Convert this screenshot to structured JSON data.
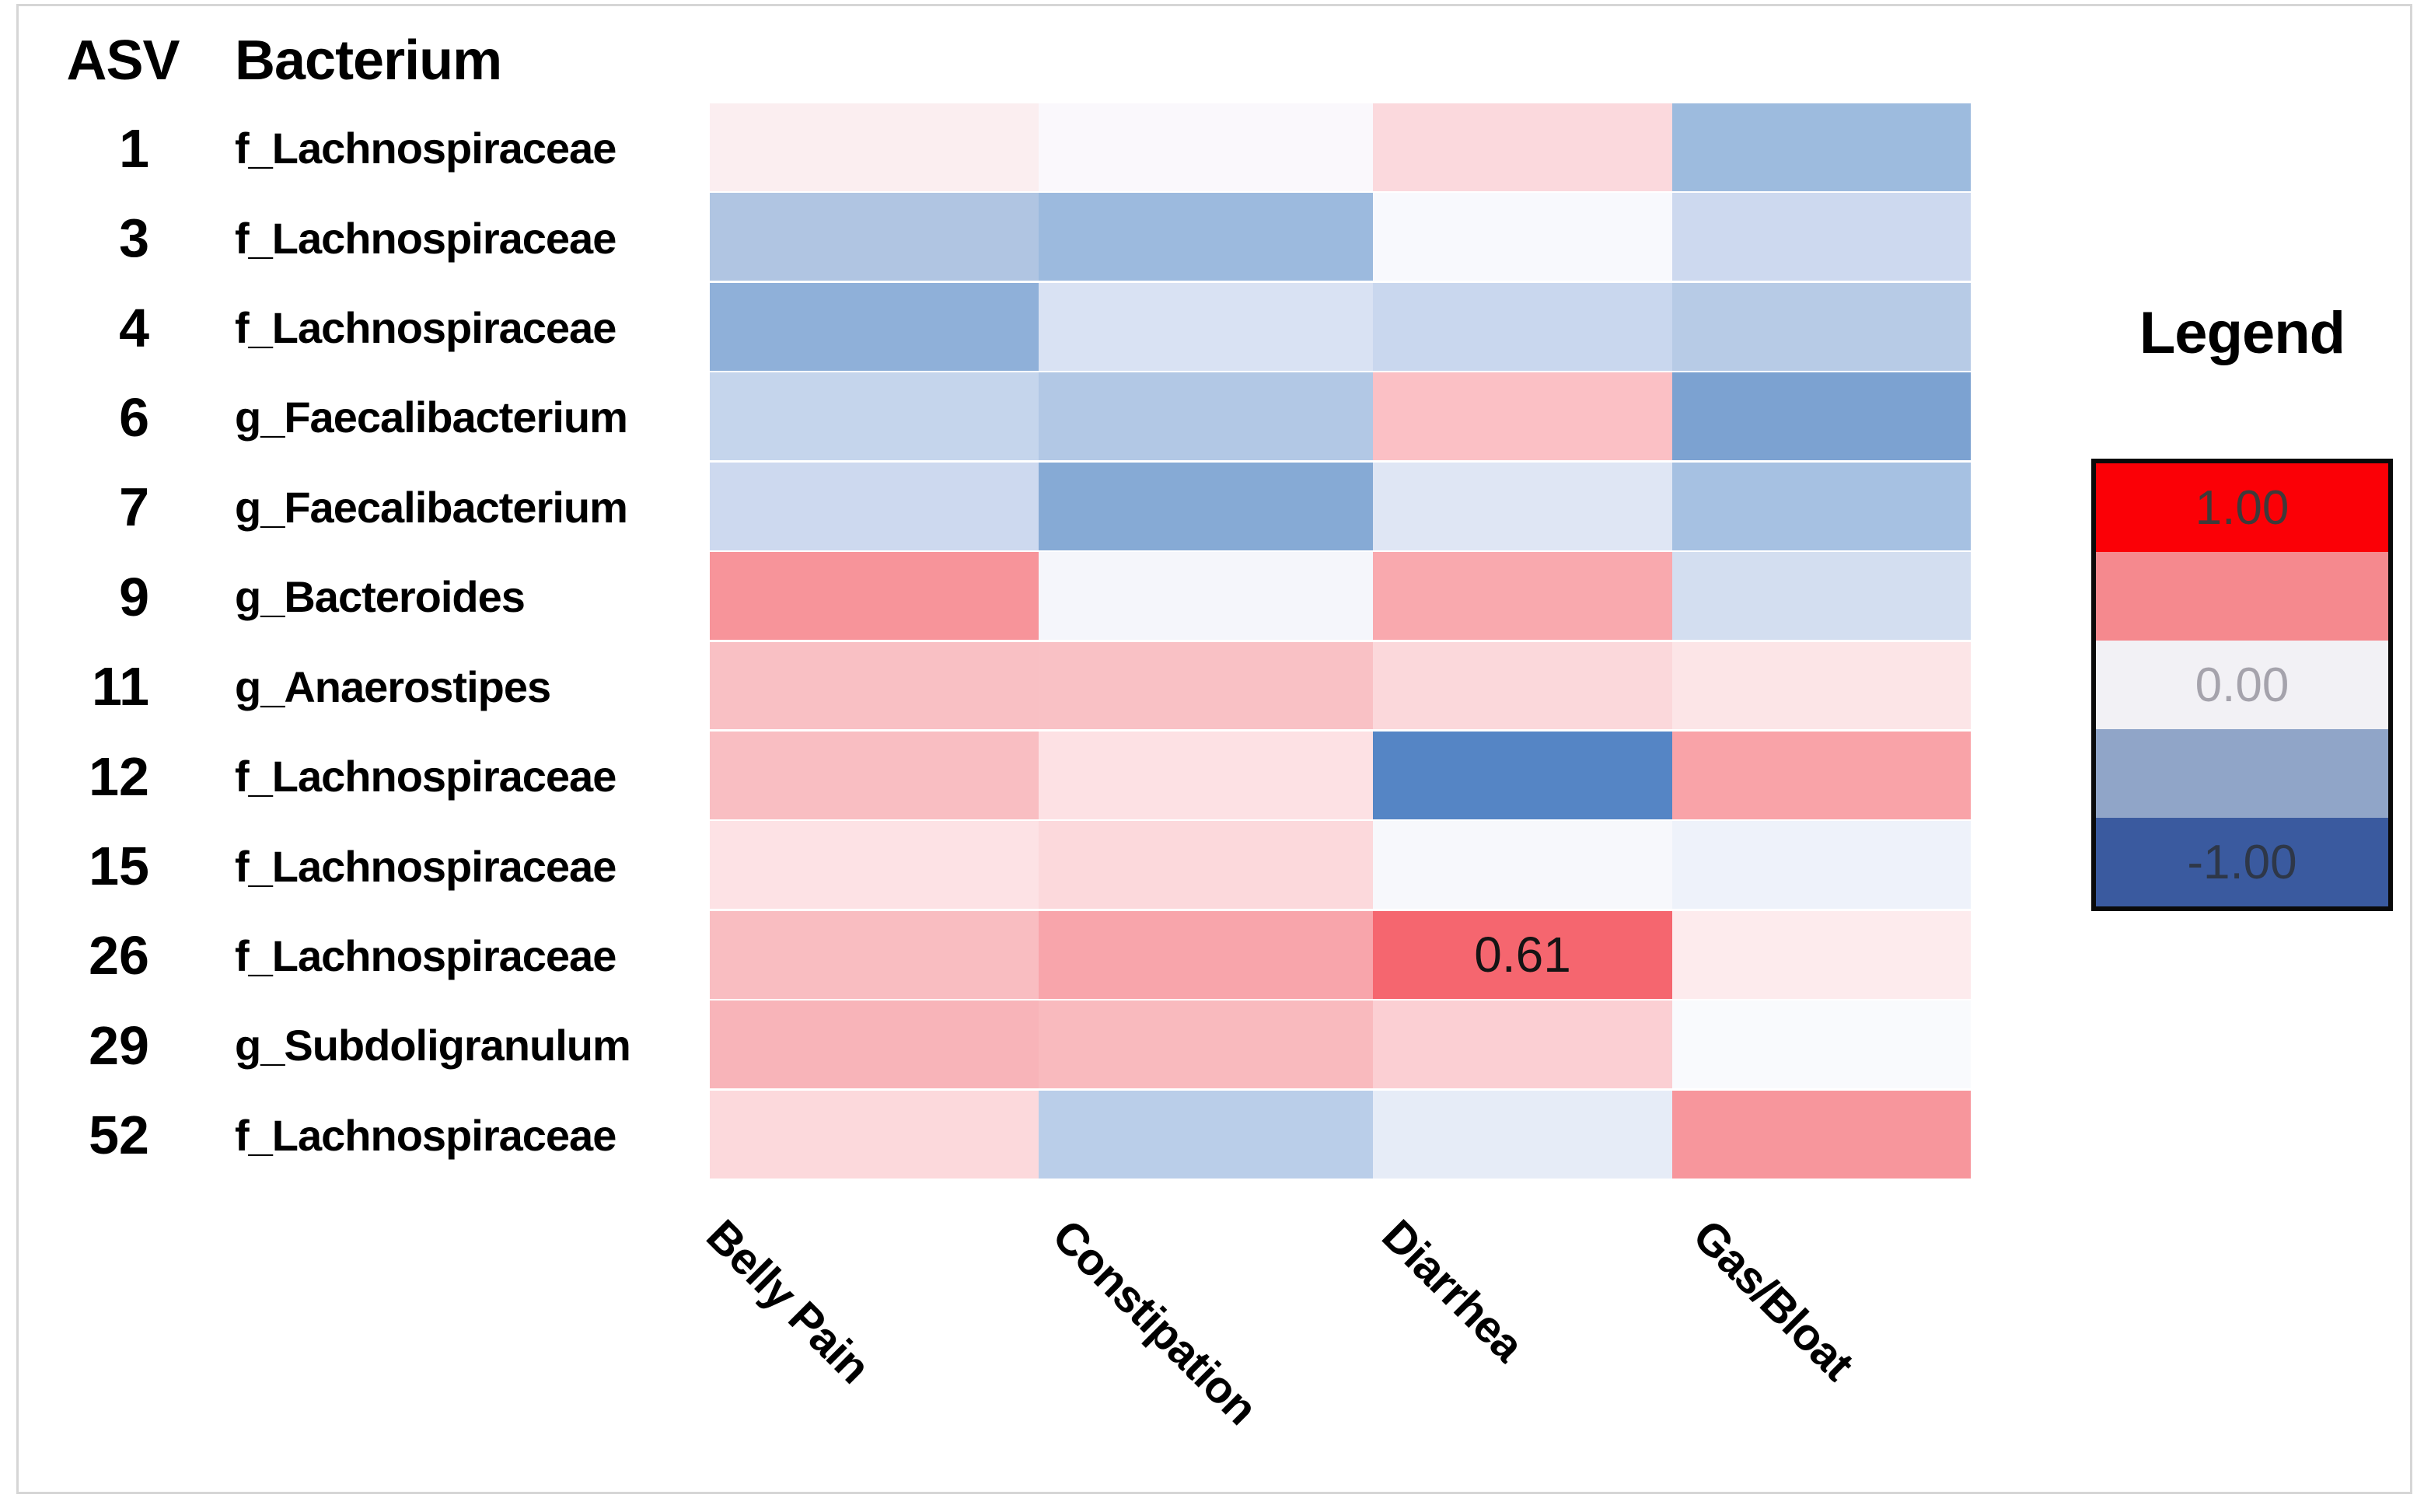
{
  "figure": {
    "asv_header": "ASV",
    "bacterium_header": "Bacterium"
  },
  "chart_data": {
    "type": "heatmap",
    "title": "",
    "columns": [
      "Belly Pain",
      "Constipation",
      "Diarrhea",
      "Gas/Bloat"
    ],
    "rows": [
      {
        "asv": "1",
        "bacterium": "f_Lachnospiraceae"
      },
      {
        "asv": "3",
        "bacterium": "f_Lachnospiraceae"
      },
      {
        "asv": "4",
        "bacterium": "f_Lachnospiraceae"
      },
      {
        "asv": "6",
        "bacterium": "g_Faecalibacterium"
      },
      {
        "asv": "7",
        "bacterium": "g_Faecalibacterium"
      },
      {
        "asv": "9",
        "bacterium": "g_Bacteroides"
      },
      {
        "asv": "11",
        "bacterium": "g_Anaerostipes"
      },
      {
        "asv": "12",
        "bacterium": "f_Lachnospiraceae"
      },
      {
        "asv": "15",
        "bacterium": "f_Lachnospiraceae"
      },
      {
        "asv": "26",
        "bacterium": "f_Lachnospiraceae"
      },
      {
        "asv": "29",
        "bacterium": "g_Subdoligranulum"
      },
      {
        "asv": "52",
        "bacterium": "f_Lachnospiraceae"
      }
    ],
    "values": [
      [
        0.06,
        0.01,
        0.15,
        -0.43
      ],
      [
        -0.34,
        -0.43,
        -0.02,
        -0.18
      ],
      [
        -0.5,
        -0.12,
        -0.2,
        -0.31
      ],
      [
        -0.22,
        -0.32,
        0.24,
        -0.61
      ],
      [
        -0.18,
        -0.55,
        -0.09,
        -0.39
      ],
      [
        0.46,
        -0.02,
        0.35,
        -0.15
      ],
      [
        0.24,
        0.23,
        0.12,
        0.06
      ],
      [
        0.25,
        0.08,
        -0.82,
        0.37
      ],
      [
        0.07,
        0.13,
        -0.02,
        -0.05
      ],
      [
        0.26,
        0.37,
        0.61,
        0.03
      ],
      [
        0.29,
        0.26,
        0.16,
        -0.01
      ],
      [
        0.12,
        -0.28,
        -0.07,
        0.44
      ]
    ],
    "cell_colors": [
      [
        "#fbeef0",
        "#faf8fc",
        "#fbd9dd",
        "#9dbbde"
      ],
      [
        "#b0c5e2",
        "#9cbade",
        "#f8f9fd",
        "#cdd9ef"
      ],
      [
        "#8fb0d9",
        "#d9e2f3",
        "#c9d7ee",
        "#b7cbe6"
      ],
      [
        "#c5d5ec",
        "#b2c8e5",
        "#fbc0c5",
        "#7ca2d1"
      ],
      [
        "#cdd9ef",
        "#86aad5",
        "#dfe6f4",
        "#a6c1e2"
      ],
      [
        "#f7949a",
        "#f5f6fb",
        "#f9a9ae",
        "#d3def0"
      ],
      [
        "#f9c0c4",
        "#f9c1c5",
        "#fbd8db",
        "#fce5e7"
      ],
      [
        "#f9bec2",
        "#fde1e4",
        "#5585c5",
        "#f9a3a8"
      ],
      [
        "#fde2e5",
        "#fcd9dc",
        "#f7f8fc",
        "#eef2fa"
      ],
      [
        "#f9bdc1",
        "#f8a5ab",
        "#f5666f",
        "#fdebed"
      ],
      [
        "#f8b4b9",
        "#f9babe",
        "#fbcfd3",
        "#f9fafd"
      ],
      [
        "#fcd9dc",
        "#bacee9",
        "#e6ecf7",
        "#f7969c"
      ]
    ],
    "cell_labels": [
      [
        "",
        "",
        "",
        ""
      ],
      [
        "",
        "",
        "",
        ""
      ],
      [
        "",
        "",
        "",
        ""
      ],
      [
        "",
        "",
        "",
        ""
      ],
      [
        "",
        "",
        "",
        ""
      ],
      [
        "",
        "",
        "",
        ""
      ],
      [
        "",
        "",
        "",
        ""
      ],
      [
        "",
        "",
        "",
        ""
      ],
      [
        "",
        "",
        "",
        ""
      ],
      [
        "",
        "",
        "0.61",
        ""
      ],
      [
        "",
        "",
        "",
        ""
      ],
      [
        "",
        "",
        "",
        ""
      ]
    ],
    "value_range": [
      -1,
      1
    ],
    "legend": {
      "title": "Legend",
      "position": "right",
      "stops": [
        {
          "label": "1.00",
          "color": "#fb0006",
          "label_color": "#3e3a3a"
        },
        {
          "label": "",
          "color": "#f5898e",
          "label_color": "#3e3a3a"
        },
        {
          "label": "0.00",
          "color": "#f2f1f5",
          "label_color": "#a5a3ac"
        },
        {
          "label": "",
          "color": "#90a5c8",
          "label_color": "#2e3748"
        },
        {
          "label": "-1.00",
          "color": "#3a5a9f",
          "label_color": "#2e3748"
        }
      ]
    }
  }
}
